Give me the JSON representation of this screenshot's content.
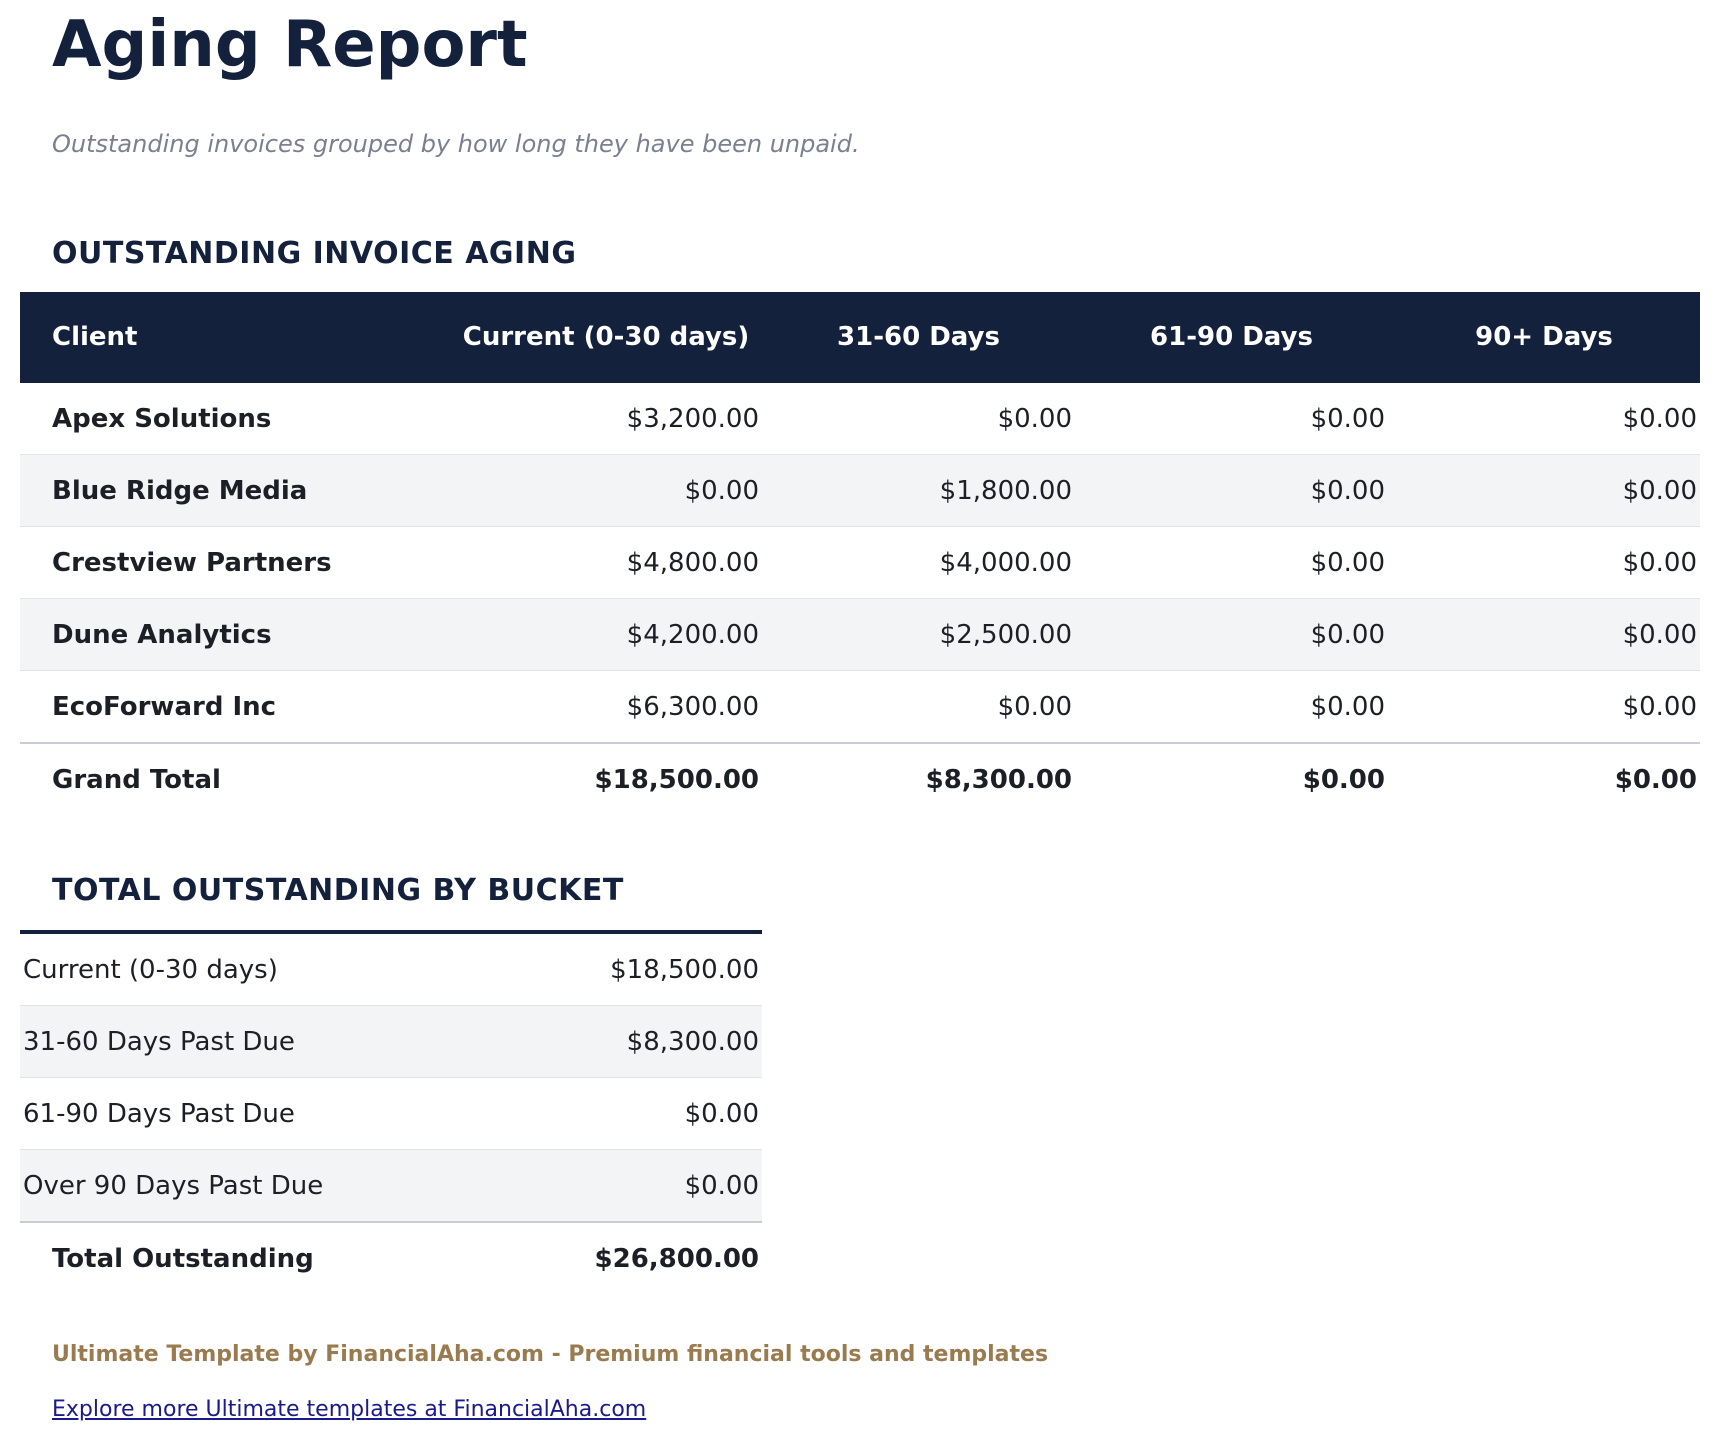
{
  "header": {
    "title": "Aging Report",
    "subtitle": "Outstanding invoices grouped by how long they have been unpaid."
  },
  "aging": {
    "title": "OUTSTANDING INVOICE AGING",
    "columns": [
      "Client",
      "Current (0-30 days)",
      "31-60 Days",
      "61-90 Days",
      "90+ Days"
    ],
    "rows": [
      [
        "Apex Solutions",
        "$3,200.00",
        "$0.00",
        "$0.00",
        "$0.00"
      ],
      [
        "Blue Ridge Media",
        "$0.00",
        "$1,800.00",
        "$0.00",
        "$0.00"
      ],
      [
        "Crestview Partners",
        "$4,800.00",
        "$4,000.00",
        "$0.00",
        "$0.00"
      ],
      [
        "Dune Analytics",
        "$4,200.00",
        "$2,500.00",
        "$0.00",
        "$0.00"
      ],
      [
        "EcoForward Inc",
        "$6,300.00",
        "$0.00",
        "$0.00",
        "$0.00"
      ]
    ],
    "total": [
      "Grand Total",
      "$18,500.00",
      "$8,300.00",
      "$0.00",
      "$0.00"
    ]
  },
  "summary": {
    "title": "TOTAL OUTSTANDING BY BUCKET",
    "rows": [
      [
        "Current (0-30 days)",
        "$18,500.00"
      ],
      [
        "31-60 Days Past Due",
        "$8,300.00"
      ],
      [
        "61-90 Days Past Due",
        "$0.00"
      ],
      [
        "Over 90 Days Past Due",
        "$0.00"
      ]
    ],
    "total": [
      "Total Outstanding",
      "$26,800.00"
    ]
  },
  "footer": {
    "credit": "Ultimate Template by FinancialAha.com - Premium financial tools and templates",
    "link": "Explore more Ultimate templates at FinancialAha.com"
  }
}
